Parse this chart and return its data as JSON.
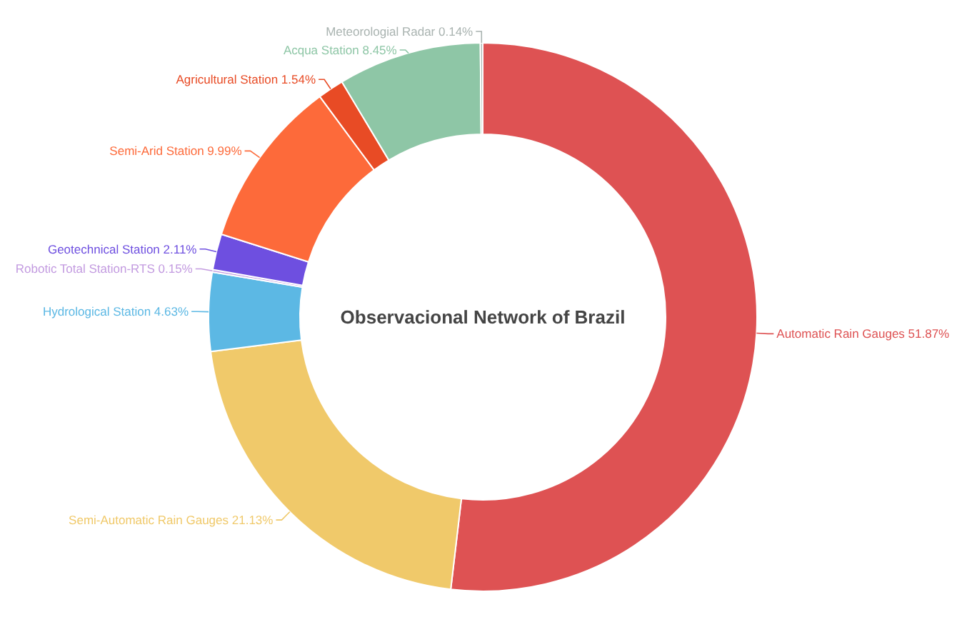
{
  "chart_data": {
    "type": "donut",
    "title": "Observacional Network of Brazil",
    "categories": [
      "Automatic Rain Gauges",
      "Semi-Automatic Rain Gauges",
      "Hydrological Station",
      "Robotic Total Station-RTS",
      "Geotechnical Station",
      "Semi-Arid Station",
      "Agricultural Station",
      "Acqua Station",
      "Meteorologial Radar"
    ],
    "values": [
      51.87,
      21.13,
      4.63,
      0.15,
      2.11,
      9.99,
      1.54,
      8.45,
      0.14
    ],
    "value_labels": [
      "51.87%",
      "21.13%",
      "4.63%",
      "0.15%",
      "2.11%",
      "9.99%",
      "1.54%",
      "8.45%",
      "0.14%"
    ],
    "colors": [
      "#de5253",
      "#f0c96a",
      "#5cb8e4",
      "#c39be0",
      "#6e4fe0",
      "#fd6a3a",
      "#e84b25",
      "#8ec6a6",
      "#a9b3b0"
    ]
  }
}
